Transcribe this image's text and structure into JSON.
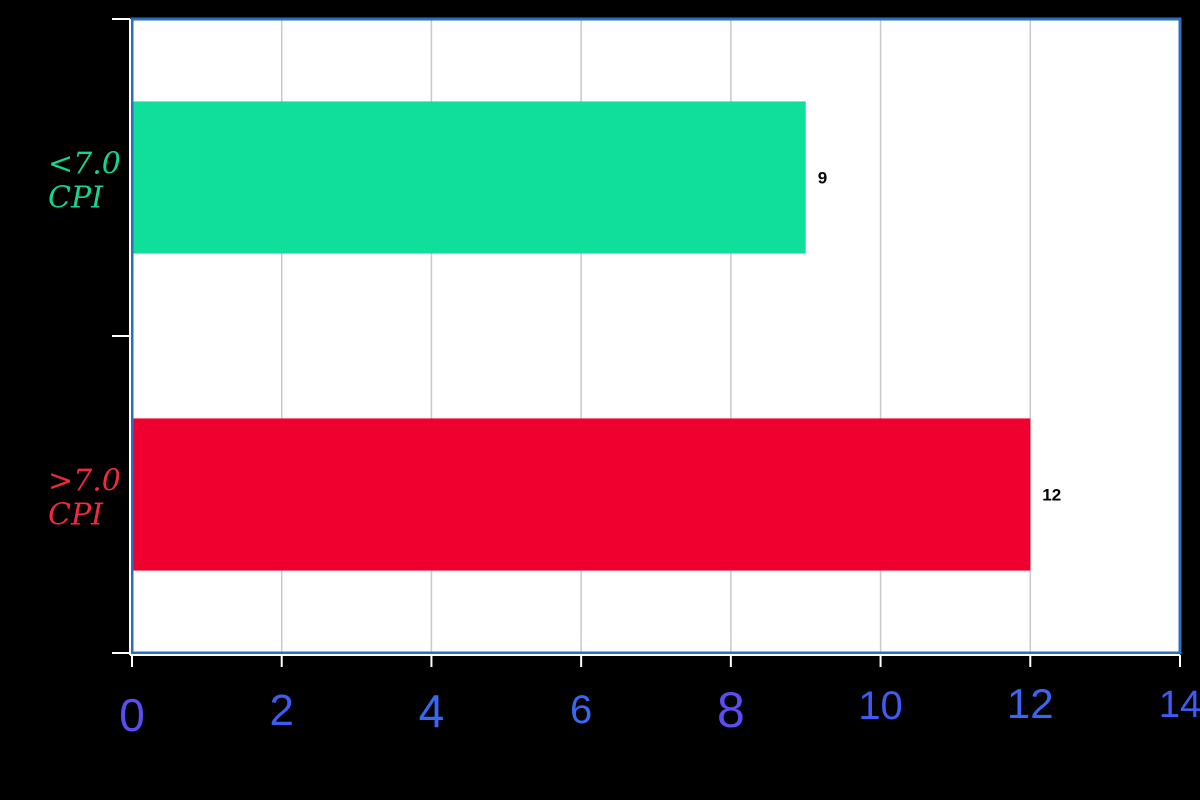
{
  "chart_data": {
    "type": "bar",
    "orientation": "horizontal",
    "categories": [
      {
        "label_lines": [
          "<7.0",
          "CPI"
        ],
        "value": 9,
        "value_label": "9",
        "bar_color": "#0fdf9b",
        "label_color": "#13d68f"
      },
      {
        "label_lines": [
          ">7.0",
          "CPI"
        ],
        "value": 12,
        "value_label": "12",
        "bar_color": "#f0002e",
        "label_color": "#ee2a3c"
      }
    ],
    "xlim": [
      0,
      14
    ],
    "x_ticks": [
      {
        "value": 0,
        "label": "0",
        "color": "#5b4cf4"
      },
      {
        "value": 2,
        "label": "2",
        "color": "#3e5cf4"
      },
      {
        "value": 4,
        "label": "4",
        "color": "#3a66f4"
      },
      {
        "value": 6,
        "label": "6",
        "color": "#3a66f4"
      },
      {
        "value": 8,
        "label": "8",
        "color": "#5b4cf4"
      },
      {
        "value": 10,
        "label": "10",
        "color": "#3e5cf4"
      },
      {
        "value": 12,
        "label": "12",
        "color": "#3a66f4"
      },
      {
        "value": 14,
        "label": "14",
        "color": "#3e5cf4"
      }
    ],
    "grid": "vertical",
    "title": "",
    "xlabel": "",
    "ylabel": "",
    "colors": {
      "background": "#000000",
      "plot_background": "#ffffff",
      "plot_border": "#2a6fc0",
      "gridline": "#c8c8c8",
      "axis_ticks": "#ffffff"
    }
  }
}
